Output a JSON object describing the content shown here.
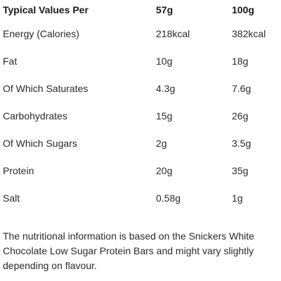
{
  "table": {
    "headers": [
      "Typical Values Per",
      "57g",
      "100g"
    ],
    "rows": [
      {
        "name": "Energy (Calories)",
        "per_57g": "218kcal",
        "per_100g": "382kcal"
      },
      {
        "name": "Fat",
        "per_57g": "10g",
        "per_100g": "18g"
      },
      {
        "name": "Of Which Saturates",
        "per_57g": "4.3g",
        "per_100g": "7.6g"
      },
      {
        "name": "Carbohydrates",
        "per_57g": "15g",
        "per_100g": "26g"
      },
      {
        "name": "Of Which Sugars",
        "per_57g": "2g",
        "per_100g": "3.5g"
      },
      {
        "name": "Protein",
        "per_57g": "20g",
        "per_100g": "35g"
      },
      {
        "name": "Salt",
        "per_57g": "0.58g",
        "per_100g": "1g"
      }
    ]
  },
  "note": "The nutritional information is based on the Snickers White Chocolate Low Sugar Protein Bars and might vary slightly depending on flavour."
}
